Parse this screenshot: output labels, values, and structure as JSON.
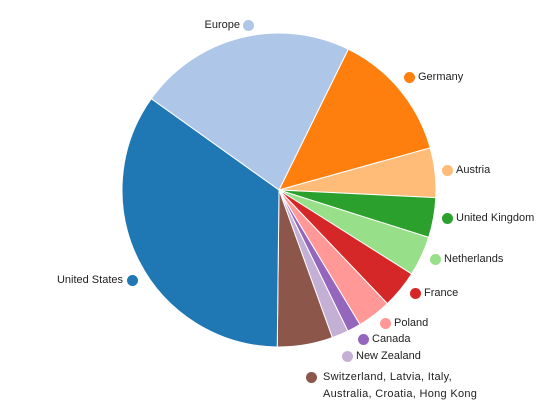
{
  "chart_data": {
    "type": "pie",
    "categories": [
      "Germany",
      "Austria",
      "United Kingdom",
      "Netherlands",
      "France",
      "Poland",
      "Canada",
      "New Zealand",
      "Switzerland, Latvia, Italy, Australia, Croatia, Hong Kong",
      "United States",
      "Europe"
    ],
    "values": [
      13.4,
      5.1,
      4.1,
      4.1,
      3.9,
      3.5,
      1.4,
      1.7,
      5.7,
      34.7,
      22.4
    ],
    "colors": [
      "#ff7f0e",
      "#ffbb78",
      "#2ca02c",
      "#98df8a",
      "#d62728",
      "#ff9896",
      "#9467bd",
      "#c5b0d5",
      "#8c564b",
      "#1f77b4",
      "#aec7e8"
    ]
  }
}
